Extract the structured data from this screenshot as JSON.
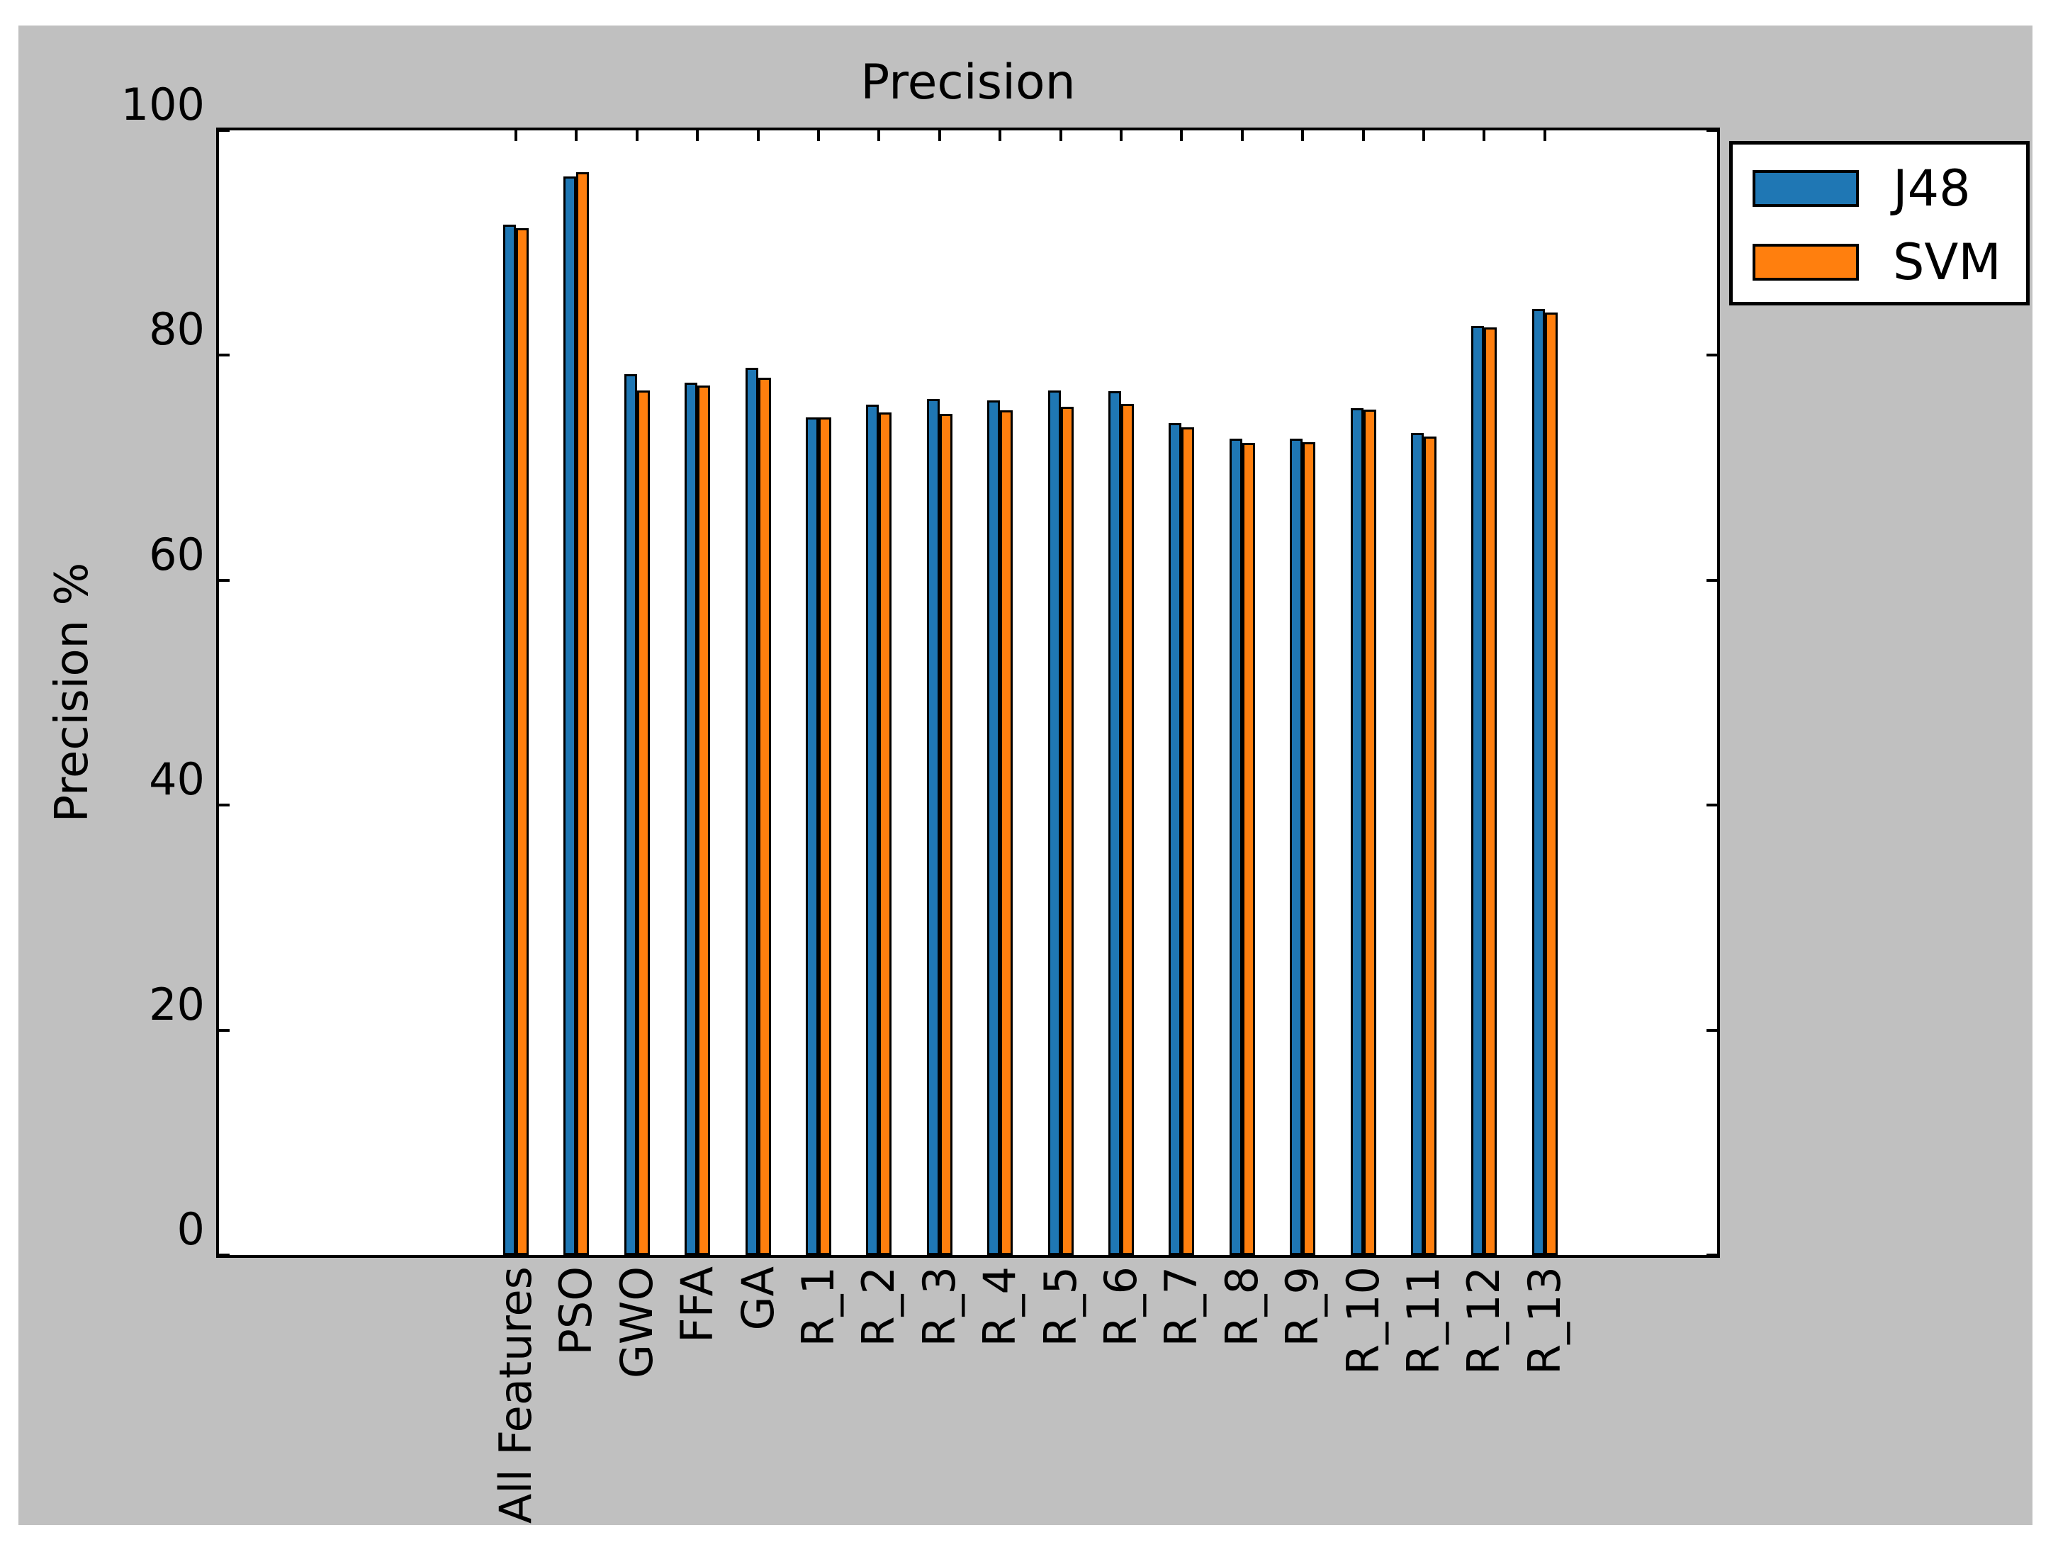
{
  "figure": {
    "background_color": "#c0c0c0",
    "plot_background_color": "#ffffff"
  },
  "chart_data": {
    "type": "bar",
    "title": "Precision",
    "xlabel": "",
    "ylabel": "Precision %",
    "ylim": [
      0,
      100
    ],
    "yticks": [
      "0",
      "20",
      "40",
      "60",
      "80",
      "100"
    ],
    "grid": false,
    "legend_position": "upper right, outside plot area",
    "tick_direction": "in",
    "categories": [
      "All Features",
      "PSO",
      "GWO",
      "FFA",
      "GA",
      "R_1",
      "R_2",
      "R_3",
      "R_4",
      "R_5",
      "R_6",
      "R_7",
      "R_8",
      "R_9",
      "R_10",
      "R_11",
      "R_12",
      "R_13"
    ],
    "series": [
      {
        "name": "J48",
        "color": "#1f77b4",
        "values": [
          91.6,
          95.9,
          78.3,
          77.6,
          78.9,
          74.5,
          75.6,
          76.1,
          76.0,
          76.9,
          76.8,
          74.0,
          72.6,
          72.6,
          75.3,
          73.1,
          82.6,
          84.1
        ]
      },
      {
        "name": "SVM",
        "color": "#ff7f0e",
        "values": [
          91.3,
          96.3,
          76.9,
          77.3,
          78.0,
          74.5,
          74.9,
          74.8,
          75.1,
          75.4,
          75.7,
          73.6,
          72.2,
          72.3,
          75.2,
          72.8,
          82.5,
          83.8
        ]
      }
    ]
  }
}
